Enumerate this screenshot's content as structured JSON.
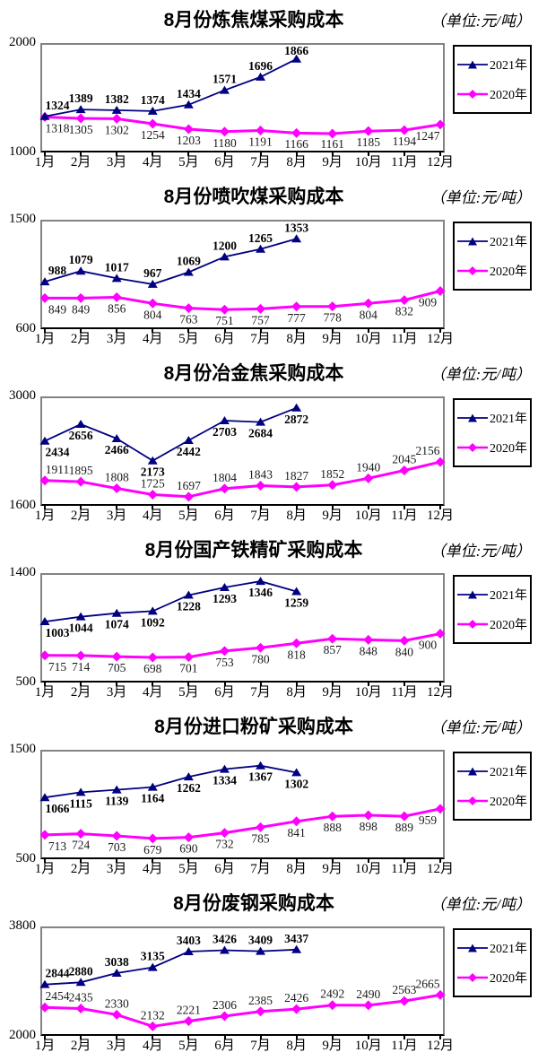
{
  "page": {
    "background": "#ffffff"
  },
  "months": [
    "1月",
    "2月",
    "3月",
    "4月",
    "5月",
    "6月",
    "7月",
    "8月",
    "9月",
    "10月",
    "11月",
    "12月"
  ],
  "legend": {
    "position": "right",
    "items": [
      {
        "label": "2021年",
        "color": "#000080",
        "marker": "triangle"
      },
      {
        "label": "2020年",
        "color": "#FF00FF",
        "marker": "diamond"
      }
    ]
  },
  "chart_data": [
    {
      "type": "line",
      "title": "8月份炼焦煤采购成本",
      "unit": "（单位:元/吨）",
      "ylim": [
        1000,
        2000
      ],
      "ytick_labels": {
        "top": "2000",
        "bottom": "1000"
      },
      "grid": false,
      "legend_position": "right",
      "categories": [
        "1月",
        "2月",
        "3月",
        "4月",
        "5月",
        "6月",
        "7月",
        "8月",
        "9月",
        "10月",
        "11月",
        "12月"
      ],
      "series": [
        {
          "name": "2021年",
          "color": "#000080",
          "marker": "triangle",
          "label_position": "above",
          "values": [
            1324,
            1389,
            1382,
            1374,
            1434,
            1571,
            1696,
            1866
          ]
        },
        {
          "name": "2020年",
          "color": "#FF00FF",
          "marker": "diamond",
          "label_position": "below",
          "values": [
            1318,
            1305,
            1302,
            1254,
            1203,
            1180,
            1191,
            1166,
            1161,
            1185,
            1194,
            1247
          ]
        }
      ]
    },
    {
      "type": "line",
      "title": "8月份喷吹煤采购成本",
      "unit": "（单位:元/吨）",
      "ylim": [
        600,
        1500
      ],
      "ytick_labels": {
        "top": "1500",
        "bottom": "600"
      },
      "grid": false,
      "legend_position": "right",
      "categories": [
        "1月",
        "2月",
        "3月",
        "4月",
        "5月",
        "6月",
        "7月",
        "8月",
        "9月",
        "10月",
        "11月",
        "12月"
      ],
      "series": [
        {
          "name": "2021年",
          "color": "#000080",
          "marker": "triangle",
          "label_position": "above",
          "values": [
            988,
            1079,
            1017,
            967,
            1069,
            1200,
            1265,
            1353
          ]
        },
        {
          "name": "2020年",
          "color": "#FF00FF",
          "marker": "diamond",
          "label_position": "below",
          "values": [
            849,
            849,
            856,
            804,
            763,
            751,
            757,
            777,
            778,
            804,
            832,
            909
          ]
        }
      ]
    },
    {
      "type": "line",
      "title": "8月份冶金焦采购成本",
      "unit": "（单位:元/吨）",
      "ylim": [
        1600,
        3000
      ],
      "ytick_labels": {
        "top": "3000",
        "bottom": "1600"
      },
      "grid": false,
      "legend_position": "right",
      "categories": [
        "1月",
        "2月",
        "3月",
        "4月",
        "5月",
        "6月",
        "7月",
        "8月",
        "9月",
        "10月",
        "11月",
        "12月"
      ],
      "series": [
        {
          "name": "2021年",
          "color": "#000080",
          "marker": "triangle",
          "label_position": "below",
          "values": [
            2434,
            2656,
            2466,
            2173,
            2442,
            2703,
            2684,
            2872
          ]
        },
        {
          "name": "2020年",
          "color": "#FF00FF",
          "marker": "diamond",
          "label_position": "above",
          "values": [
            1911,
            1895,
            1808,
            1725,
            1697,
            1804,
            1843,
            1827,
            1852,
            1940,
            2045,
            2156
          ]
        }
      ]
    },
    {
      "type": "line",
      "title": "8月份国产铁精矿采购成本",
      "unit": "（单位:元/吨）",
      "ylim": [
        500,
        1400
      ],
      "ytick_labels": {
        "top": "1400",
        "bottom": "500"
      },
      "grid": false,
      "legend_position": "right",
      "categories": [
        "1月",
        "2月",
        "3月",
        "4月",
        "5月",
        "6月",
        "7月",
        "8月",
        "9月",
        "10月",
        "11月",
        "12月"
      ],
      "series": [
        {
          "name": "2021年",
          "color": "#000080",
          "marker": "triangle",
          "label_position": "below",
          "values": [
            1003,
            1044,
            1074,
            1092,
            1228,
            1293,
            1346,
            1259
          ]
        },
        {
          "name": "2020年",
          "color": "#FF00FF",
          "marker": "diamond",
          "label_position": "below",
          "values": [
            715,
            714,
            705,
            698,
            701,
            753,
            780,
            818,
            857,
            848,
            840,
            900
          ]
        }
      ]
    },
    {
      "type": "line",
      "title": "8月份进口粉矿采购成本",
      "unit": "（单位:元/吨）",
      "ylim": [
        500,
        1500
      ],
      "ytick_labels": {
        "top": "1500",
        "bottom": "500"
      },
      "grid": false,
      "legend_position": "right",
      "categories": [
        "1月",
        "2月",
        "3月",
        "4月",
        "5月",
        "6月",
        "7月",
        "8月",
        "9月",
        "10月",
        "11月",
        "12月"
      ],
      "series": [
        {
          "name": "2021年",
          "color": "#000080",
          "marker": "triangle",
          "label_position": "below",
          "values": [
            1066,
            1115,
            1139,
            1164,
            1262,
            1334,
            1367,
            1302
          ]
        },
        {
          "name": "2020年",
          "color": "#FF00FF",
          "marker": "diamond",
          "label_position": "below",
          "values": [
            713,
            724,
            703,
            679,
            690,
            732,
            785,
            841,
            888,
            898,
            889,
            959
          ]
        }
      ]
    },
    {
      "type": "line",
      "title": "8月份废钢采购成本",
      "unit": "（单位:元/吨）",
      "ylim": [
        2000,
        3800
      ],
      "ytick_labels": {
        "top": "3800",
        "bottom": "2000"
      },
      "grid": false,
      "legend_position": "right",
      "categories": [
        "1月",
        "2月",
        "3月",
        "4月",
        "5月",
        "6月",
        "7月",
        "8月",
        "9月",
        "10月",
        "11月",
        "12月"
      ],
      "series": [
        {
          "name": "2021年",
          "color": "#000080",
          "marker": "triangle",
          "label_position": "above",
          "values": [
            2844,
            2880,
            3038,
            3135,
            3403,
            3426,
            3409,
            3437
          ]
        },
        {
          "name": "2020年",
          "color": "#FF00FF",
          "marker": "diamond",
          "label_position": "above",
          "values": [
            2454,
            2435,
            2330,
            2132,
            2221,
            2306,
            2385,
            2426,
            2492,
            2490,
            2563,
            2665
          ]
        }
      ]
    }
  ]
}
